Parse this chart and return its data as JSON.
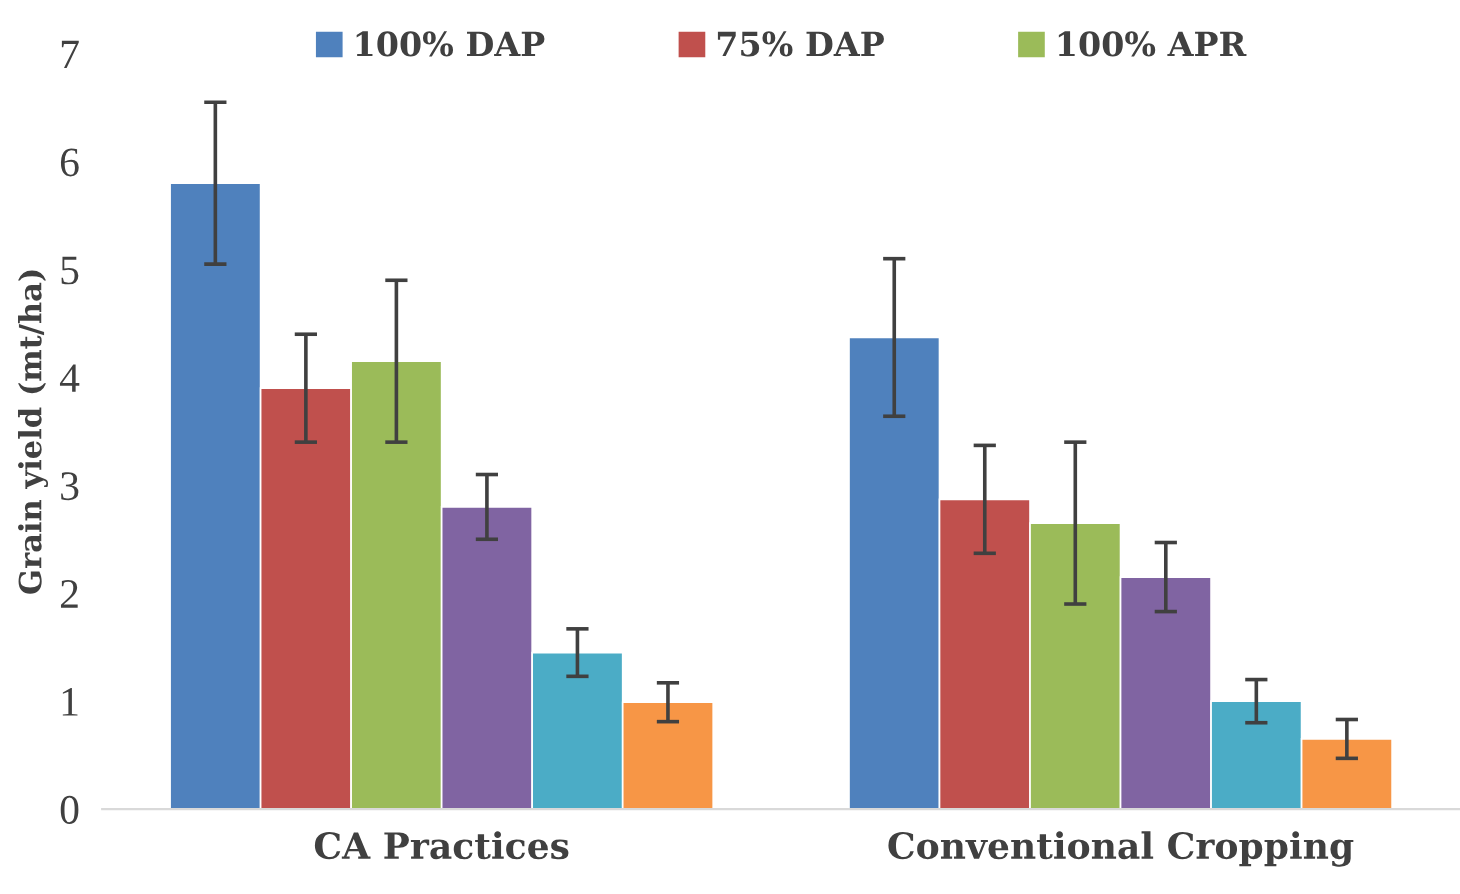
{
  "chart_data": {
    "type": "bar",
    "ylabel": "Grain yield (mt/ha)",
    "categories": [
      "CA Practices",
      "Conventional Cropping"
    ],
    "series": [
      {
        "name": "100% DAP",
        "color": "#4f81bd",
        "values": [
          5.8,
          4.37
        ],
        "errors": [
          0.75,
          0.73
        ]
      },
      {
        "name": "75% DAP",
        "color": "#c0504d",
        "values": [
          3.9,
          2.87
        ],
        "errors": [
          0.5,
          0.5
        ]
      },
      {
        "name": "100% APR",
        "color": "#9bbb59",
        "values": [
          4.15,
          2.65
        ],
        "errors": [
          0.75,
          0.75
        ]
      },
      {
        "color": "#8064a2",
        "values": [
          2.8,
          2.15
        ],
        "errors": [
          0.3,
          0.32
        ]
      },
      {
        "color": "#4bacc6",
        "values": [
          1.45,
          1.0
        ],
        "errors": [
          0.22,
          0.2
        ]
      },
      {
        "color": "#f79646",
        "values": [
          0.99,
          0.65
        ],
        "errors": [
          0.18,
          0.18
        ]
      }
    ],
    "ylim": [
      0,
      7
    ],
    "yticks": [
      0,
      1,
      2,
      3,
      4,
      5,
      6,
      7
    ],
    "grid": false,
    "legend": "top"
  }
}
